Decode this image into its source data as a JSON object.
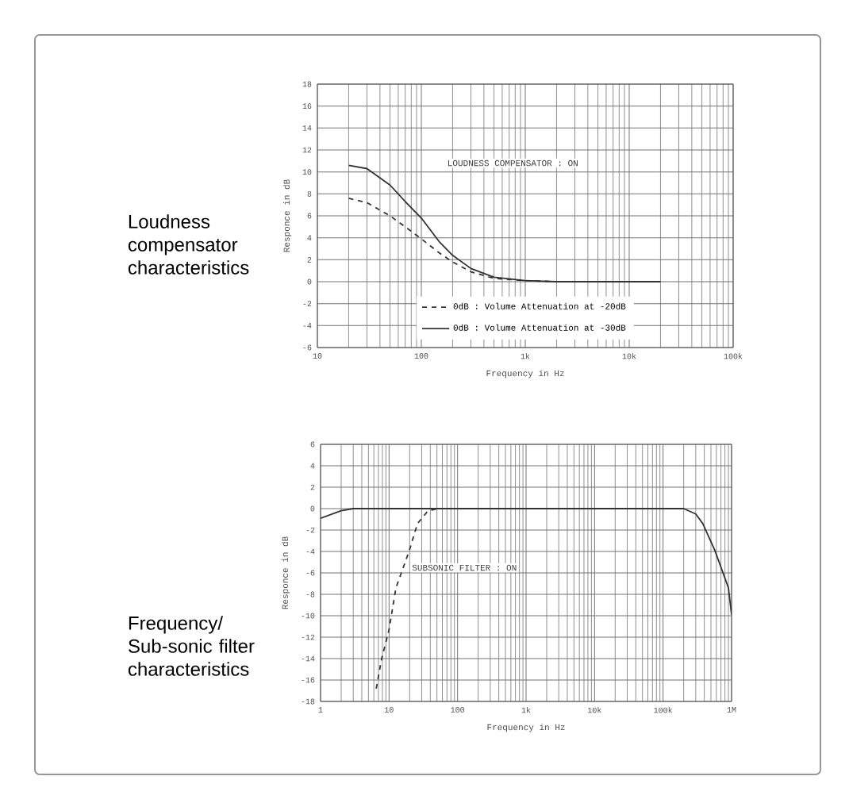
{
  "chart_data": [
    {
      "type": "line",
      "title": "Loudness compensator characteristics",
      "xlabel": "Frequency in Hz",
      "ylabel": "Responce in dB",
      "annotations": [
        "LOUDNESS COMPENSATOR : ON"
      ],
      "log": "x",
      "grid": true,
      "legend": "bottom",
      "xlim": [
        10,
        100000
      ],
      "ylim": [
        -6,
        18
      ],
      "xticks": [
        10,
        100,
        {
          "value": 1000,
          "label": "1k"
        },
        {
          "value": 10000,
          "label": "10k"
        },
        {
          "value": 100000,
          "label": "100k"
        }
      ],
      "yticks": [
        -6,
        -4,
        -2,
        0,
        2,
        4,
        6,
        8,
        10,
        12,
        14,
        16,
        18
      ],
      "series": [
        {
          "name": "0dB : Volume Attenuation at -20dB",
          "color": "#333333",
          "line_style": "dashed",
          "x": [
            20,
            30,
            50,
            70,
            100,
            150,
            200,
            300,
            500,
            1000,
            2000
          ],
          "values": [
            7.6,
            7.2,
            6.0,
            5.0,
            3.9,
            2.6,
            1.8,
            0.9,
            0.3,
            0.1,
            0
          ]
        },
        {
          "name": "0dB : Volume Attenuation at -30dB",
          "color": "#333333",
          "line_style": "solid",
          "x": [
            20,
            30,
            50,
            70,
            100,
            150,
            200,
            300,
            500,
            1000,
            2000,
            20000
          ],
          "values": [
            10.6,
            10.3,
            8.8,
            7.3,
            5.8,
            3.6,
            2.4,
            1.2,
            0.4,
            0.1,
            0,
            0
          ]
        }
      ]
    },
    {
      "type": "line",
      "title": "Frequency/ Sub-sonic filter characteristics",
      "xlabel": "Frequency in Hz",
      "ylabel": "Responce in dB",
      "annotations": [
        "SUBSONIC FILTER : ON"
      ],
      "log": "x",
      "grid": true,
      "xlim": [
        1,
        1000000
      ],
      "ylim": [
        -18,
        6
      ],
      "xticks": [
        1,
        10,
        100,
        {
          "value": 1000,
          "label": "1k"
        },
        {
          "value": 10000,
          "label": "10k"
        },
        {
          "value": 100000,
          "label": "100k"
        },
        {
          "value": 1000000,
          "label": "1M"
        }
      ],
      "yticks": [
        -18,
        -16,
        -14,
        -12,
        -10,
        -8,
        -6,
        -4,
        -2,
        0,
        2,
        4,
        6
      ],
      "series": [
        {
          "color": "#333333",
          "line_style": "solid",
          "x": [
            1,
            2,
            3,
            10,
            100,
            10000,
            200000,
            300000,
            380000,
            570000,
            900000,
            1000000
          ],
          "values": [
            -0.9,
            -0.2,
            0,
            0,
            0,
            0,
            0,
            -0.5,
            -1.4,
            -3.9,
            -7.4,
            -9.9
          ]
        },
        {
          "color": "#333333",
          "line_style": "dashed",
          "x": [
            6.5,
            7.8,
            10,
            12.6,
            19.8,
            26,
            37,
            53,
            100,
            1000,
            100000
          ],
          "values": [
            -16.8,
            -14,
            -11.3,
            -7.4,
            -3.9,
            -1.4,
            -0.2,
            0,
            0,
            0,
            0
          ]
        }
      ]
    }
  ]
}
